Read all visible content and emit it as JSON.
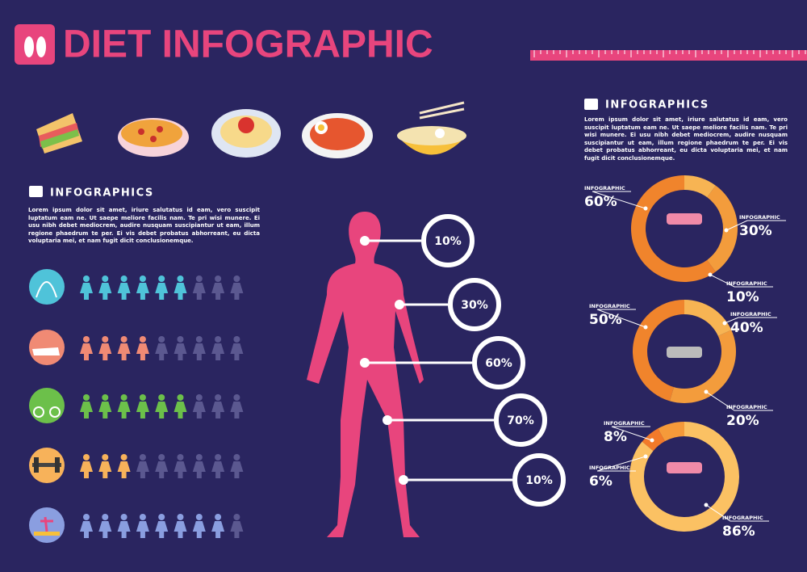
{
  "header": {
    "title": "DIET INFOGRAPHIC"
  },
  "left_panel": {
    "heading": "INFOGRAPHICS",
    "text": "Lorem ipsum dolor sit amet, iriure salutatus id eam, vero suscipit luptatum eam ne. Ut saepe meliore facilis nam. Te pri wisi munere. Ei usu nibh debet mediocrem, audire nusquam suscipiantur ut eam, illum regione phaedrum te per. Ei vis debet probatus abhorreant, eu dicta voluptaria mei, et nam fugit dicit conclusionemque."
  },
  "activity_rows": [
    {
      "filled": 6,
      "total": 9,
      "color": "#4fc3d9"
    },
    {
      "filled": 4,
      "total": 9,
      "color": "#f08a74"
    },
    {
      "filled": 6,
      "total": 9,
      "color": "#6cc04a"
    },
    {
      "filled": 3,
      "total": 9,
      "color": "#f7b25a"
    },
    {
      "filled": 8,
      "total": 9,
      "color": "#8a9ee0"
    }
  ],
  "body_callouts": [
    "10%",
    "30%",
    "60%",
    "70%",
    "10%"
  ],
  "right_panel": {
    "heading": "INFOGRAPHICS",
    "text": "Lorem ipsum dolor sit amet, iriure salutatus id eam, vero suscipit luptatum eam ne. Ut saepe meliore facilis nam. Te pri wisi munere. Ei usu nibh debet mediocrem, audire nusquam suscipiantur ut eam, illum regione phaedrum te per. Ei vis debet probatus abhorreant, eu dicta voluptaria mei, et nam fugit dicit conclusionemque."
  },
  "donuts": [
    {
      "labels": [
        "INFOGRAPHIC",
        "INFOGRAPHIC",
        "INFOGRAPHIC"
      ],
      "values": [
        60,
        30,
        10
      ],
      "value_labels": [
        "60%",
        "30%",
        "10%"
      ],
      "colors": [
        "#f0842c",
        "#f39c3c",
        "#f7b453"
      ]
    },
    {
      "labels": [
        "INFOGRAPHIC",
        "INFOGRAPHIC",
        "INFOGRAPHIC"
      ],
      "values": [
        50,
        40,
        20
      ],
      "value_labels": [
        "50%",
        "40%",
        "20%"
      ],
      "colors": [
        "#f0842c",
        "#f39c3c",
        "#f7b453"
      ]
    },
    {
      "labels": [
        "INFOGRAPHIC",
        "INFOGRAPHIC",
        "INFOGRAPHIC"
      ],
      "values": [
        8,
        6,
        86
      ],
      "value_labels": [
        "8%",
        "6%",
        "86%"
      ],
      "colors": [
        "#f59a3a",
        "#f27a2a",
        "#fbc163"
      ]
    }
  ]
}
